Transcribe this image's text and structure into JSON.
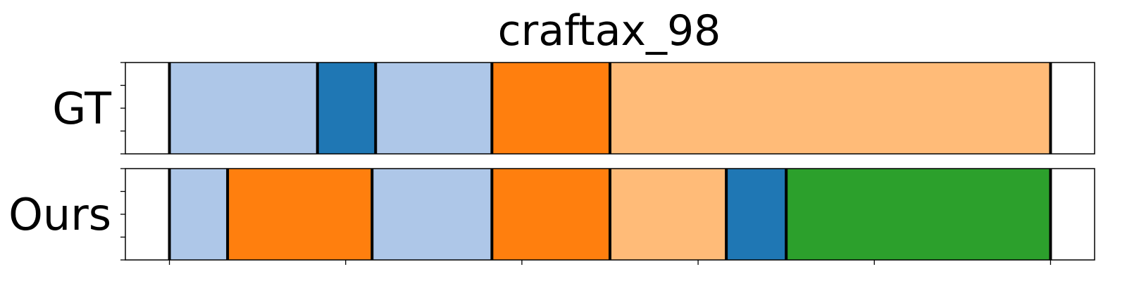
{
  "chart_data": {
    "type": "segmentation-timeline",
    "title": "craftax_98",
    "x_range": [
      0,
      55
    ],
    "x_ticks": [
      2.5,
      12.5,
      22.5,
      32.5,
      42.5,
      52.5
    ],
    "colors": {
      "light_blue": "#aec7e8",
      "blue": "#1f77b4",
      "orange": "#ff7f0e",
      "light_orange": "#ffbb78",
      "green": "#2ca02c",
      "boundary": "#000000",
      "frame": "#000000"
    },
    "rows": [
      {
        "label": "GT",
        "boundaries": [
          2.5,
          10.9,
          14.2,
          20.8,
          27.5,
          52.5
        ],
        "segments": [
          {
            "start": 2.5,
            "end": 10.9,
            "color": "light_blue"
          },
          {
            "start": 10.9,
            "end": 14.2,
            "color": "blue"
          },
          {
            "start": 14.2,
            "end": 20.8,
            "color": "light_blue"
          },
          {
            "start": 20.8,
            "end": 27.5,
            "color": "orange"
          },
          {
            "start": 27.5,
            "end": 52.5,
            "color": "light_orange"
          }
        ]
      },
      {
        "label": "Ours",
        "boundaries": [
          2.5,
          5.8,
          14.0,
          20.8,
          27.5,
          34.1,
          37.5,
          52.5
        ],
        "segments": [
          {
            "start": 2.5,
            "end": 5.8,
            "color": "light_blue"
          },
          {
            "start": 5.8,
            "end": 14.0,
            "color": "orange"
          },
          {
            "start": 14.0,
            "end": 20.8,
            "color": "light_blue"
          },
          {
            "start": 20.8,
            "end": 27.5,
            "color": "orange"
          },
          {
            "start": 27.5,
            "end": 34.1,
            "color": "light_orange"
          },
          {
            "start": 34.1,
            "end": 37.5,
            "color": "blue"
          },
          {
            "start": 37.5,
            "end": 52.5,
            "color": "green"
          }
        ]
      }
    ]
  }
}
